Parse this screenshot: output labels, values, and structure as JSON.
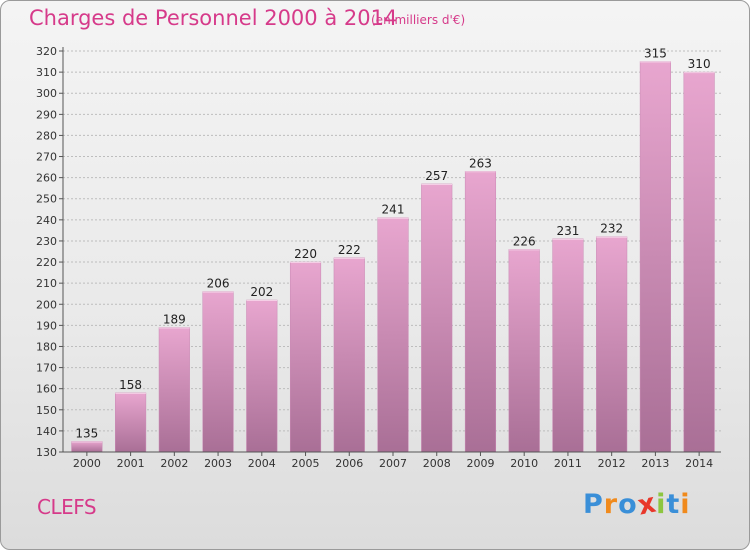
{
  "title": "Charges de Personnel 2000 à 2014",
  "subtitle": "(en milliers d'€)",
  "commune": "CLEFS",
  "logo": {
    "letters": [
      "P",
      "r",
      "o",
      "x",
      "i",
      "t",
      "i"
    ],
    "colors": [
      "#3a8fd8",
      "#f08a1c",
      "#3a8fd8",
      "#e8372a",
      "#8dc63f",
      "#3a8fd8",
      "#f08a1c"
    ]
  },
  "colors": {
    "accent": "#d63a8a",
    "bar_top": "#e8a6cf",
    "bar_bottom": "#a96f96",
    "grid": "#bdbdbd"
  },
  "chart_data": {
    "type": "bar",
    "categories": [
      "2000",
      "2001",
      "2002",
      "2003",
      "2004",
      "2005",
      "2006",
      "2007",
      "2008",
      "2009",
      "2010",
      "2011",
      "2012",
      "2013",
      "2014"
    ],
    "values": [
      135,
      158,
      189,
      206,
      202,
      220,
      222,
      241,
      257,
      263,
      226,
      231,
      232,
      315,
      310
    ],
    "ylim": [
      130,
      320
    ],
    "ytick_step": 10,
    "grid": true,
    "xlabel": "",
    "ylabel": ""
  }
}
